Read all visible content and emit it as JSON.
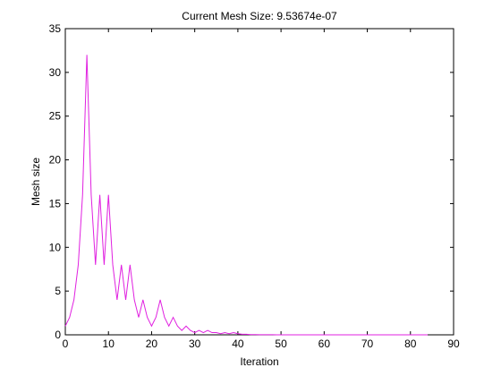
{
  "chart_data": {
    "type": "line",
    "title": "Current Mesh Size: 9.53674e-07",
    "xlabel": "Iteration",
    "ylabel": "Mesh size",
    "xlim": [
      0,
      90
    ],
    "ylim": [
      0,
      35
    ],
    "grid": false,
    "xticks": [
      0,
      10,
      20,
      30,
      40,
      50,
      60,
      70,
      80,
      90
    ],
    "yticks": [
      0,
      5,
      10,
      15,
      20,
      25,
      30,
      35
    ],
    "series": [
      {
        "color": "#e020e0",
        "x": [
          0,
          1,
          2,
          3,
          4,
          5,
          6,
          7,
          8,
          9,
          10,
          11,
          12,
          13,
          14,
          15,
          16,
          17,
          18,
          19,
          20,
          21,
          22,
          23,
          24,
          25,
          26,
          27,
          28,
          29,
          30,
          31,
          32,
          33,
          34,
          35,
          36,
          37,
          38,
          39,
          40,
          41,
          42,
          43,
          44,
          45,
          46,
          47,
          48,
          49,
          50,
          51,
          52,
          53,
          54,
          55,
          56,
          57,
          58,
          59,
          60,
          61,
          62,
          63,
          64,
          65,
          66,
          67,
          68,
          69,
          70,
          71,
          72,
          73,
          74,
          75,
          76,
          77,
          78,
          79,
          80,
          81,
          82,
          83,
          84
        ],
        "y": [
          1,
          2,
          4,
          8,
          16,
          32,
          16,
          8,
          16,
          8,
          16,
          8,
          4,
          8,
          4,
          8,
          4,
          2,
          4,
          2,
          1,
          2,
          4,
          2,
          1,
          2,
          1,
          0.5,
          1,
          0.5,
          0.25,
          0.5,
          0.25,
          0.5,
          0.25,
          0.25,
          0.125,
          0.25,
          0.125,
          0.25,
          0.125,
          0.0625,
          0.0625,
          0.03125,
          0.03125,
          0.015625,
          0.015625,
          0.0078125,
          0.0078125,
          0.00390625,
          0.00390625,
          0.001953125,
          0.001953125,
          0.0009765625,
          0.0009765625,
          0.00048828125,
          0.00048828125,
          0.000244140625,
          0.000244140625,
          0.0001220703125,
          0.0001220703125,
          6.103515625e-05,
          6.103515625e-05,
          3.0517578125e-05,
          3.0517578125e-05,
          1.52587890625e-05,
          1.52587890625e-05,
          7.62939453125e-06,
          7.62939453125e-06,
          3.814697265625e-06,
          3.814697265625e-06,
          1.9073486328125e-06,
          1.9073486328125e-06,
          9.5367431640625e-07,
          9.5367431640625e-07,
          9.5367431640625e-07,
          9.5367431640625e-07,
          9.5367431640625e-07,
          9.5367431640625e-07,
          9.5367431640625e-07,
          9.5367431640625e-07,
          9.5367431640625e-07,
          9.5367431640625e-07,
          9.5367431640625e-07,
          9.5367431640625e-07
        ]
      }
    ]
  }
}
